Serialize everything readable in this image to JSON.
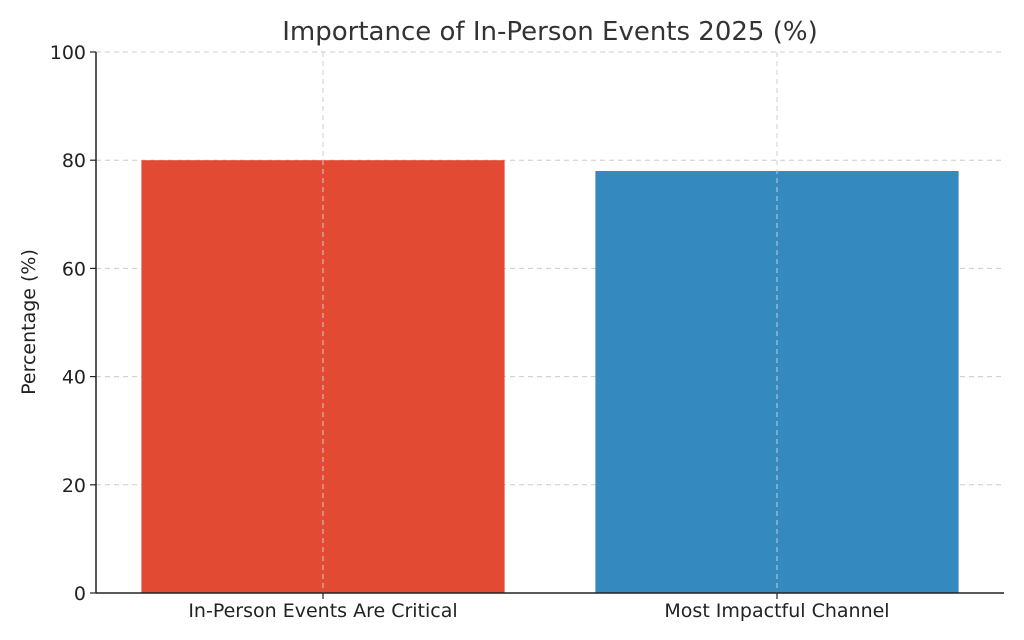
{
  "chart_data": {
    "type": "bar",
    "title": "Importance of In-Person Events 2025 (%)",
    "xlabel": "",
    "ylabel": "Percentage (%)",
    "categories": [
      "In-Person Events Are Critical",
      "Most Impactful Channel"
    ],
    "values": [
      80,
      78
    ],
    "colors": [
      "#e34a33",
      "#3489be"
    ],
    "ylim": [
      0,
      100
    ],
    "yticks": [
      0,
      20,
      40,
      60,
      80,
      100
    ],
    "grid": true,
    "legend": "none"
  }
}
